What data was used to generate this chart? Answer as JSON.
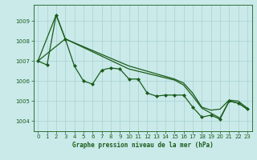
{
  "title": "Graphe pression niveau de la mer (hPa)",
  "bg_color": "#caeaea",
  "grid_color": "#aed4d4",
  "line_color": "#1a5c1a",
  "xlim": [
    -0.5,
    23.5
  ],
  "ylim": [
    1003.5,
    1009.8
  ],
  "yticks": [
    1004,
    1005,
    1006,
    1007,
    1008,
    1009
  ],
  "xticks": [
    0,
    1,
    2,
    3,
    4,
    5,
    6,
    7,
    8,
    9,
    10,
    11,
    12,
    13,
    14,
    15,
    16,
    17,
    18,
    19,
    20,
    21,
    22,
    23
  ],
  "series": [
    {
      "x": [
        0,
        1,
        2,
        3,
        4,
        5,
        6,
        7,
        8,
        9,
        10,
        11,
        12,
        13,
        14,
        15,
        16,
        17,
        18,
        19,
        20,
        21,
        22,
        23
      ],
      "y": [
        1007.0,
        1006.8,
        1009.3,
        1008.1,
        1006.75,
        1006.0,
        1005.85,
        1006.55,
        1006.65,
        1006.6,
        1006.1,
        1006.1,
        1005.4,
        1005.25,
        1005.3,
        1005.3,
        1005.3,
        1004.7,
        1004.2,
        1004.3,
        1004.1,
        1005.0,
        1004.9,
        1004.6
      ],
      "marker": "D",
      "markersize": 2.0,
      "linewidth": 0.9
    },
    {
      "x": [
        0,
        2,
        3,
        10,
        15,
        16,
        17,
        18,
        19,
        20,
        21,
        22,
        23
      ],
      "y": [
        1007.0,
        1009.3,
        1008.1,
        1006.75,
        1006.1,
        1005.9,
        1005.4,
        1004.7,
        1004.55,
        1004.6,
        1005.05,
        1005.0,
        1004.65
      ],
      "marker": null,
      "markersize": 0,
      "linewidth": 0.9
    },
    {
      "x": [
        0,
        3,
        10,
        15,
        16,
        17,
        18,
        19,
        20,
        21,
        22,
        23
      ],
      "y": [
        1007.0,
        1008.1,
        1006.6,
        1006.05,
        1005.8,
        1005.25,
        1004.65,
        1004.4,
        1004.15,
        1005.0,
        1004.9,
        1004.6
      ],
      "marker": null,
      "markersize": 0,
      "linewidth": 0.9
    }
  ]
}
